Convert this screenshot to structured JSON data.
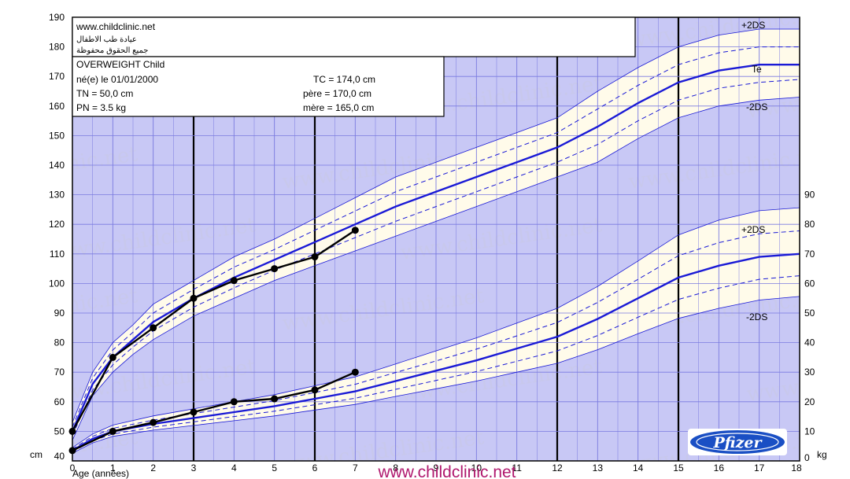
{
  "site": {
    "url": "www.childclinic.net",
    "arabic_line1": "عيادة طب الاطفال",
    "arabic_line2": "جميع الحقوق محفوظة",
    "footer_url": "www.childclinic.net",
    "watermark_text": "www.childclinic.net",
    "logo_text": "Pfizer"
  },
  "info_box": {
    "title": "OVERWEIGHT Child",
    "birth": "né(e) le 01/01/2000",
    "tc": "TC = 174,0 cm",
    "tn": "TN = 50,0 cm",
    "pere": "père = 170,0 cm",
    "pn": "PN = 3.5 kg",
    "mere": "mère = 165,0 cm"
  },
  "chart_data": {
    "type": "line",
    "xlabel": "Age (années)",
    "x_ticks": [
      0,
      1,
      2,
      3,
      4,
      5,
      6,
      7,
      8,
      9,
      10,
      11,
      12,
      13,
      14,
      15,
      16,
      17,
      18
    ],
    "xlim": [
      0,
      18
    ],
    "grid": true,
    "left_axis": {
      "unit": "cm",
      "ylim": [
        40,
        190
      ],
      "ticks": [
        40,
        50,
        60,
        70,
        80,
        90,
        100,
        110,
        120,
        130,
        140,
        150,
        160,
        170,
        180,
        190
      ]
    },
    "right_axis": {
      "unit": "kg",
      "ylim": [
        0,
        90
      ],
      "ticks": [
        0,
        10,
        20,
        30,
        40,
        50,
        60,
        70,
        80,
        90
      ]
    },
    "height_reference": {
      "age": [
        0,
        0.5,
        1,
        1.5,
        2,
        3,
        4,
        5,
        6,
        7,
        8,
        9,
        10,
        11,
        12,
        13,
        14,
        15,
        16,
        17,
        18
      ],
      "median": [
        50,
        66,
        75,
        81,
        87,
        95,
        102,
        108,
        114,
        120,
        126,
        131,
        136,
        141,
        146,
        153,
        161,
        168,
        172,
        174,
        174
      ],
      "minus1": [
        48.5,
        64,
        72.5,
        78.5,
        84,
        92,
        98.5,
        104.5,
        110,
        115.5,
        121,
        126,
        131,
        136,
        141,
        147,
        155,
        162,
        166,
        168,
        169
      ],
      "plus1": [
        51.5,
        68,
        77.5,
        83.5,
        90,
        98,
        105.5,
        111.5,
        118,
        124.5,
        131,
        136,
        141,
        146,
        151,
        159,
        167,
        174,
        178,
        180,
        180
      ],
      "minus2": [
        47,
        62,
        70,
        76,
        81,
        89,
        95,
        101,
        106,
        111,
        116,
        121,
        126,
        131,
        136,
        141,
        149,
        156,
        160,
        162,
        163
      ],
      "plus2": [
        53,
        70,
        80,
        86,
        93,
        101,
        109,
        115,
        122,
        129,
        136,
        141,
        146,
        151,
        156,
        165,
        173,
        180,
        184,
        186,
        186
      ],
      "labels": {
        "plus2": "+2DS",
        "median": "Te",
        "minus2": "-2DS"
      }
    },
    "weight_reference": {
      "age": [
        0,
        0.5,
        1,
        2,
        3,
        4,
        5,
        6,
        7,
        8,
        9,
        10,
        11,
        12,
        13,
        14,
        15,
        16,
        17,
        18
      ],
      "median": [
        3.5,
        7.5,
        10,
        12.5,
        14.5,
        16.5,
        18.5,
        21,
        23.5,
        27,
        30.5,
        34,
        38,
        42,
        48,
        55,
        62,
        66,
        69,
        70
      ],
      "minus1": [
        3.0,
        6.8,
        9.1,
        11.4,
        13.2,
        15.0,
        16.8,
        19.0,
        21.2,
        24.2,
        27.2,
        30.2,
        33.7,
        37.2,
        42.4,
        48.6,
        54.6,
        58.4,
        61.4,
        62.6
      ],
      "plus1": [
        4.0,
        8.3,
        11.0,
        13.8,
        16.0,
        18.2,
        20.4,
        23.1,
        25.9,
        29.9,
        33.8,
        37.8,
        42.3,
        46.8,
        53.6,
        61.4,
        69.4,
        73.8,
        76.8,
        77.8
      ],
      "minus2": [
        2.6,
        6.1,
        8.3,
        10.4,
        12.0,
        13.6,
        15.2,
        17.2,
        19.1,
        21.8,
        24.4,
        27.0,
        30.0,
        33.0,
        37.6,
        43.0,
        48.2,
        51.6,
        54.4,
        55.6
      ],
      "plus2": [
        4.5,
        9.1,
        12.1,
        15.2,
        17.6,
        20.0,
        22.4,
        25.4,
        28.4,
        32.8,
        37.2,
        41.6,
        46.6,
        51.6,
        59.0,
        67.6,
        76.4,
        81.4,
        84.6,
        85.6
      ],
      "labels": {
        "plus2": "+2DS",
        "minus2": "-2DS"
      }
    },
    "series": [
      {
        "name": "height",
        "x": [
          0,
          1,
          2,
          3,
          4,
          5,
          6,
          7
        ],
        "y": [
          50,
          75,
          85,
          95,
          101,
          105,
          109,
          118
        ],
        "axis": "cm"
      },
      {
        "name": "weight",
        "x": [
          0,
          1,
          2,
          3,
          4,
          5,
          6,
          7
        ],
        "y": [
          3.5,
          10,
          13,
          16.5,
          20,
          21,
          24,
          30
        ],
        "axis": "kg"
      }
    ],
    "colors": {
      "panel": "#c8c8f5",
      "band": "#fffbea",
      "reference": "#1a1ad6",
      "patient": "#000000",
      "grid_thin": "#7a7ae0"
    }
  }
}
